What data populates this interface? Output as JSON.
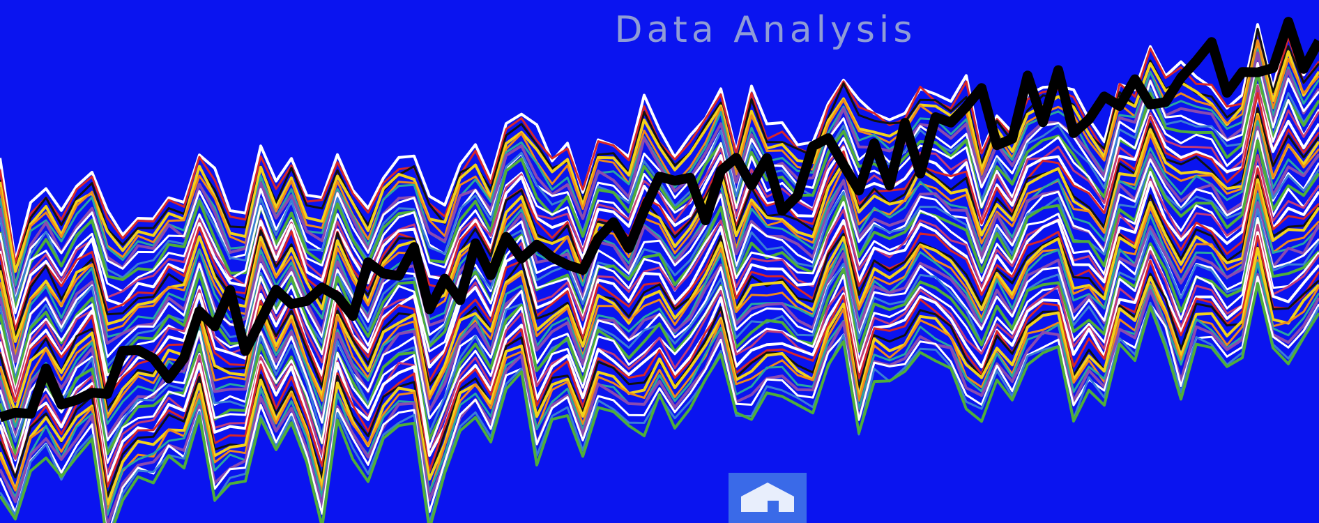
{
  "header": {
    "title": "Data Analysis"
  }
}
